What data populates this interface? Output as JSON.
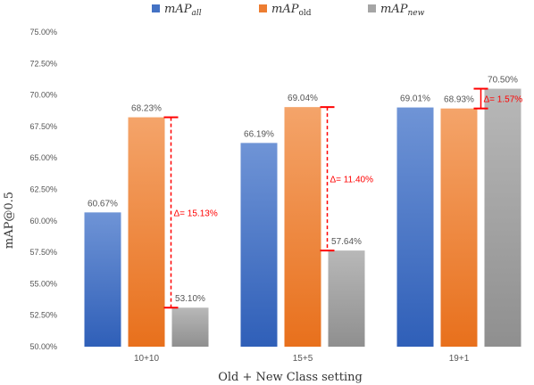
{
  "chart_data": {
    "type": "bar",
    "categories": [
      "10+10",
      "15+5",
      "19+1"
    ],
    "series": [
      {
        "name": "mAP_all",
        "legend_base": "mAP",
        "legend_sub": "all",
        "legend_sub_italic": true,
        "color": "#4472c4",
        "values": [
          60.67,
          66.19,
          69.01
        ],
        "labels": [
          "60.67%",
          "66.19%",
          "69.01%"
        ]
      },
      {
        "name": "mAP_old",
        "legend_base": "mAP",
        "legend_sub": "old",
        "legend_sub_italic": false,
        "color": "#ed7d31",
        "values": [
          68.23,
          69.04,
          68.93
        ],
        "labels": [
          "68.23%",
          "69.04%",
          "68.93%"
        ]
      },
      {
        "name": "mAP_new",
        "legend_base": "mAP",
        "legend_sub": "new",
        "legend_sub_italic": true,
        "color": "#a5a5a5",
        "values": [
          53.1,
          57.64,
          70.5
        ],
        "labels": [
          "53.10%",
          "57.64%",
          "70.50%"
        ]
      }
    ],
    "ylim": [
      50,
      75
    ],
    "yticks": [
      50,
      52.5,
      55,
      57.5,
      60,
      62.5,
      65,
      67.5,
      70,
      72.5,
      75
    ],
    "ytick_labels": [
      "50.00%",
      "52.50%",
      "55.00%",
      "57.50%",
      "60.00%",
      "62.50%",
      "65.00%",
      "67.50%",
      "70.00%",
      "72.50%",
      "75.00%"
    ],
    "xlabel": "Old + New Class setting",
    "ylabel": "mAP@0.5",
    "legend_position": "top-center",
    "grid": false,
    "annotations": [
      {
        "category": "10+10",
        "from": 53.1,
        "to": 68.23,
        "label": "Δ= 15.13%"
      },
      {
        "category": "15+5",
        "from": 57.64,
        "to": 69.04,
        "label": "Δ= 11.40%"
      },
      {
        "category": "19+1",
        "from": 68.93,
        "to": 70.5,
        "label": "Δ= 1.57%"
      }
    ],
    "annotation_color": "#ff0000"
  }
}
